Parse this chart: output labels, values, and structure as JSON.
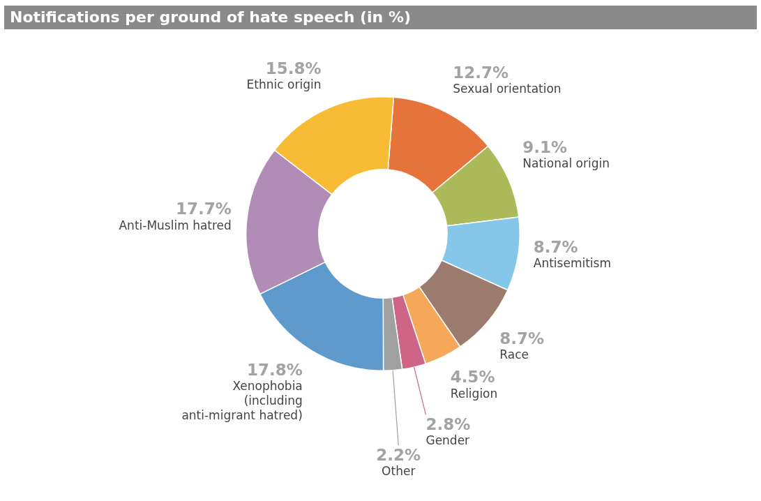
{
  "chart_data": {
    "type": "donut",
    "title": "Notifications per ground of hate speech (in %)",
    "categories": [
      "Sexual orientation",
      "National origin",
      "Antisemitism",
      "Race",
      "Religion",
      "Gender",
      "Other",
      "Xenophobia (including anti-migrant hatred)",
      "Anti-Muslim hatred",
      "Ethnic origin"
    ],
    "values": [
      12.7,
      9.1,
      8.7,
      8.7,
      4.5,
      2.8,
      2.2,
      17.8,
      17.7,
      15.8
    ],
    "value_labels": [
      "12.7%",
      "9.1%",
      "8.7%",
      "8.7%",
      "4.5%",
      "2.8%",
      "2.2%",
      "17.8%",
      "17.7%",
      "15.8%"
    ],
    "colors": [
      "#e5733a",
      "#adba5a",
      "#86c6e9",
      "#9b7b6e",
      "#f5a85a",
      "#cf6586",
      "#a0a0a0",
      "#5e9acb",
      "#b08cb6",
      "#f8bb35"
    ],
    "legend": false
  }
}
